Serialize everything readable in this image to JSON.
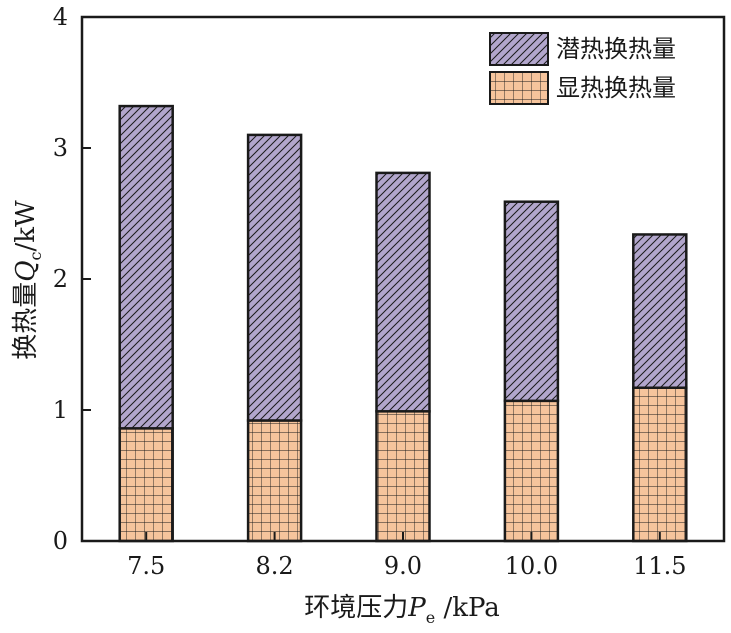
{
  "chart_data": {
    "type": "bar",
    "stacked": true,
    "categories": [
      "7.5",
      "8.2",
      "9.0",
      "10.0",
      "11.5"
    ],
    "series": [
      {
        "name": "显热换热量",
        "values": [
          0.86,
          0.92,
          0.99,
          1.07,
          1.17
        ],
        "color": "#f6c49c",
        "pattern": "grid"
      },
      {
        "name": "潜热换热量",
        "values": [
          2.46,
          2.18,
          1.82,
          1.52,
          1.17
        ],
        "color": "#b2a6cc",
        "pattern": "diagonal-hatch"
      }
    ],
    "xlabel": {
      "prefix": "环境压力",
      "var": "P",
      "sub": "e",
      "suffix": " /kPa"
    },
    "ylabel": {
      "prefix": "换热量",
      "var": "Q",
      "sub": "c",
      "suffix": "/kW"
    },
    "ylim": [
      0,
      4
    ],
    "yticks": [
      0,
      1,
      2,
      3,
      4
    ],
    "legend_position": "top-right",
    "grid": false
  }
}
